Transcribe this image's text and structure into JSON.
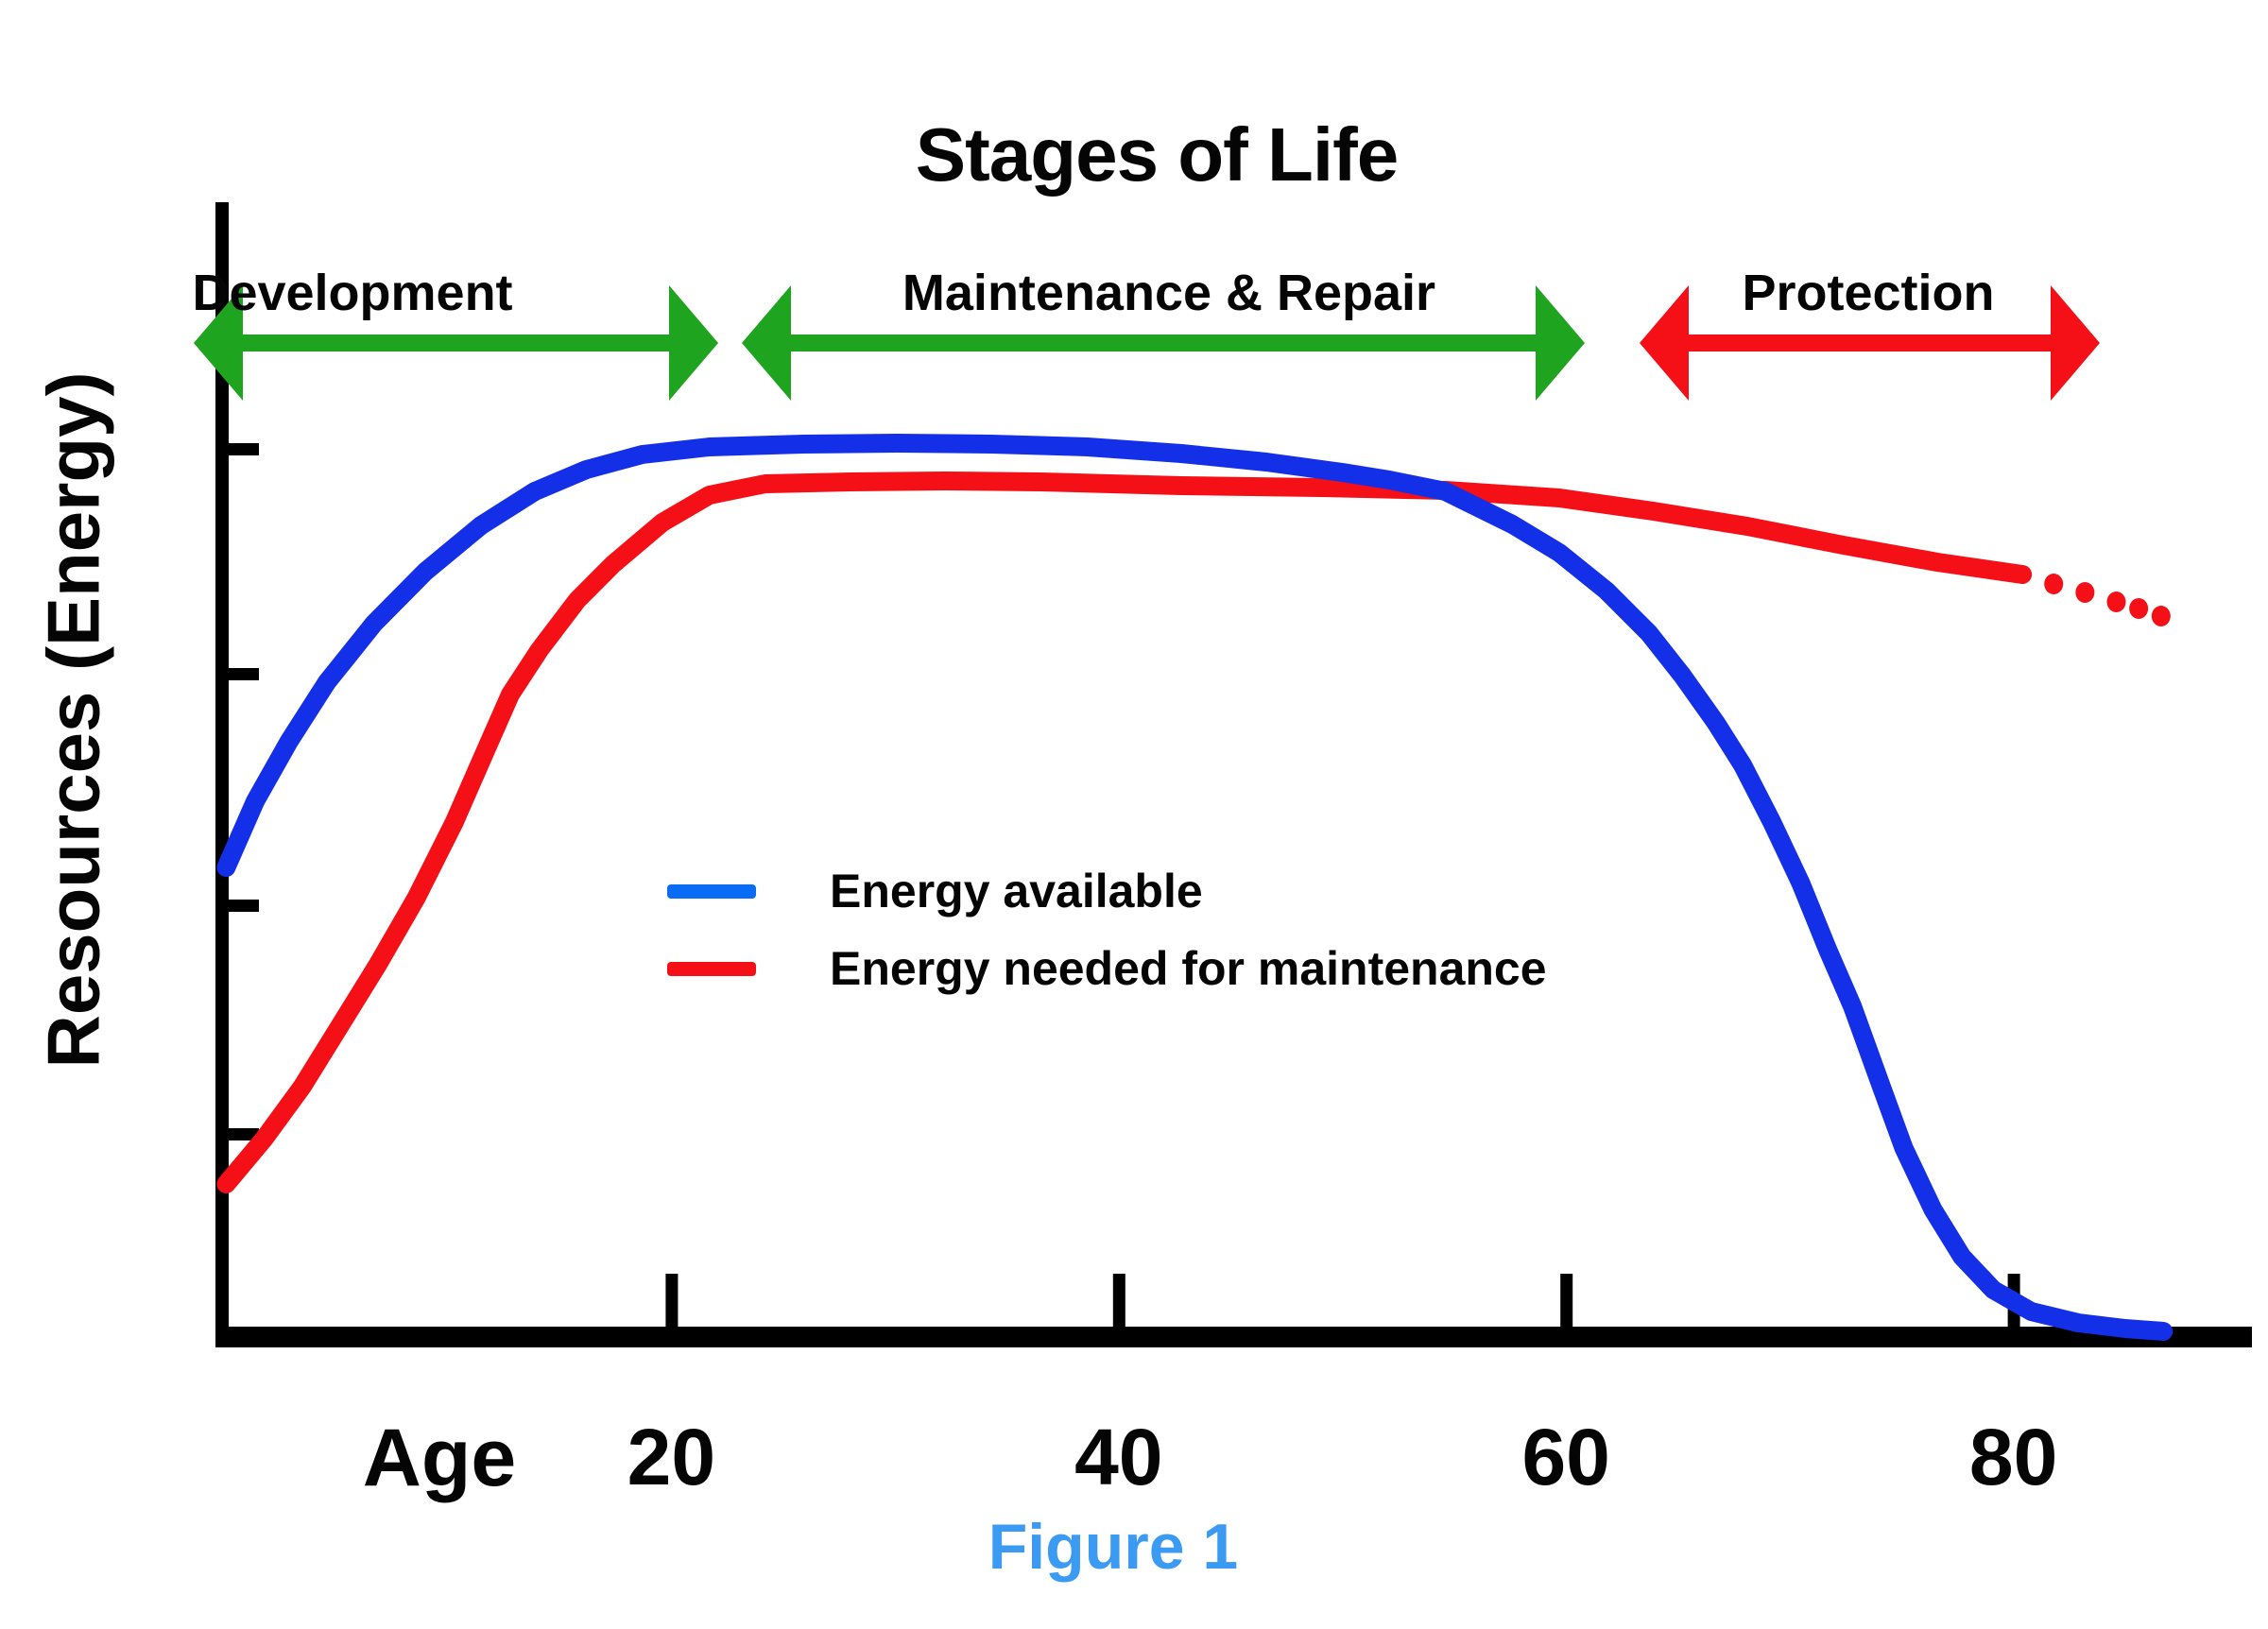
{
  "title": "Stages of Life",
  "figure_caption": "Figure 1",
  "y_axis_label": "Resources (Energy)",
  "x_axis_label": "Age",
  "stages": [
    {
      "label": "Development",
      "arrow_color": "#1fa41f"
    },
    {
      "label": "Maintenance & Repair",
      "arrow_color": "#1fa41f"
    },
    {
      "label": "Protection",
      "arrow_color": "#f50f16"
    }
  ],
  "legend": {
    "items": [
      {
        "label": "Energy available",
        "swatch_color": "#0a6cf5"
      },
      {
        "label": "Energy needed for maintenance",
        "swatch_color": "#f50f16"
      }
    ]
  },
  "colors": {
    "axis": "#000000",
    "text": "#050505",
    "caption_blue": "#3b9bf2",
    "curve_blue": "#1330e8",
    "curve_red": "#f50f16",
    "arrow_green": "#1fa41f",
    "arrow_red": "#f50f16"
  },
  "chart_data": {
    "type": "line",
    "title": "Stages of Life",
    "xlabel": "Age",
    "ylabel": "Resources (Energy)",
    "x_ticks": [
      20,
      40,
      60,
      80
    ],
    "xlim": [
      0,
      91
    ],
    "ylim": [
      0,
      100
    ],
    "y_ticks_unlabeled_values": [
      93.5,
      69.7,
      45.2,
      21.0
    ],
    "grid": false,
    "legend_position": "inside-left-middle",
    "stage_annotations": [
      {
        "label": "Development",
        "approx_years": [
          0,
          22
        ],
        "arrow_color": "green"
      },
      {
        "label": "Maintenance & Repair",
        "approx_years": [
          23,
          61
        ],
        "arrow_color": "green"
      },
      {
        "label": "Protection",
        "approx_years": [
          63,
          84
        ],
        "arrow_color": "red"
      }
    ],
    "series": [
      {
        "name": "Energy available",
        "color": "#1330e8",
        "style": "solid",
        "points": [
          [
            0.1,
            49.2
          ],
          [
            1.4,
            56.2
          ],
          [
            2.9,
            62.5
          ],
          [
            4.6,
            68.8
          ],
          [
            6.7,
            75.0
          ],
          [
            9.0,
            80.5
          ],
          [
            11.5,
            85.4
          ],
          [
            13.9,
            89.0
          ],
          [
            16.2,
            91.3
          ],
          [
            18.7,
            92.9
          ],
          [
            21.7,
            93.7
          ],
          [
            25.9,
            94.0
          ],
          [
            30.1,
            94.1
          ],
          [
            34.3,
            94.0
          ],
          [
            38.6,
            93.7
          ],
          [
            42.8,
            93.0
          ],
          [
            46.6,
            92.1
          ],
          [
            50.0,
            91.0
          ],
          [
            52.1,
            90.2
          ],
          [
            54.6,
            89.0
          ],
          [
            57.6,
            85.5
          ],
          [
            59.7,
            82.5
          ],
          [
            61.8,
            78.5
          ],
          [
            63.7,
            74.0
          ],
          [
            65.2,
            69.5
          ],
          [
            66.7,
            64.5
          ],
          [
            67.9,
            60.0
          ],
          [
            69.2,
            54.0
          ],
          [
            70.5,
            47.5
          ],
          [
            71.7,
            40.5
          ],
          [
            72.8,
            34.5
          ],
          [
            74.1,
            26.0
          ],
          [
            75.1,
            19.5
          ],
          [
            76.4,
            13.0
          ],
          [
            77.7,
            8.0
          ],
          [
            79.1,
            4.5
          ],
          [
            80.8,
            2.2
          ],
          [
            82.9,
            1.0
          ],
          [
            85.0,
            0.4
          ],
          [
            86.7,
            0.1
          ]
        ]
      },
      {
        "name": "Energy needed for maintenance",
        "color": "#f50f16",
        "style": "solid-with-dotted-tail",
        "points": [
          [
            0.1,
            15.7
          ],
          [
            1.8,
            20.5
          ],
          [
            3.5,
            26.0
          ],
          [
            5.2,
            32.5
          ],
          [
            6.9,
            39.0
          ],
          [
            8.6,
            46.0
          ],
          [
            10.3,
            54.0
          ],
          [
            11.5,
            60.5
          ],
          [
            12.8,
            67.5
          ],
          [
            14.1,
            72.2
          ],
          [
            15.8,
            77.5
          ],
          [
            17.4,
            81.3
          ],
          [
            19.6,
            85.7
          ],
          [
            21.7,
            88.6
          ],
          [
            24.2,
            89.8
          ],
          [
            28.0,
            90.0
          ],
          [
            32.2,
            90.1
          ],
          [
            36.5,
            90.0
          ],
          [
            42.8,
            89.6
          ],
          [
            49.1,
            89.4
          ],
          [
            54.6,
            89.1
          ],
          [
            59.7,
            88.3
          ],
          [
            63.9,
            86.9
          ],
          [
            68.1,
            85.3
          ],
          [
            72.4,
            83.3
          ],
          [
            76.6,
            81.5
          ],
          [
            80.4,
            80.2
          ]
        ],
        "dotted_tail_points": [
          [
            81.8,
            79.2
          ],
          [
            83.2,
            78.3
          ],
          [
            84.6,
            77.3
          ],
          [
            85.6,
            76.6
          ],
          [
            86.6,
            75.8
          ]
        ]
      }
    ]
  }
}
